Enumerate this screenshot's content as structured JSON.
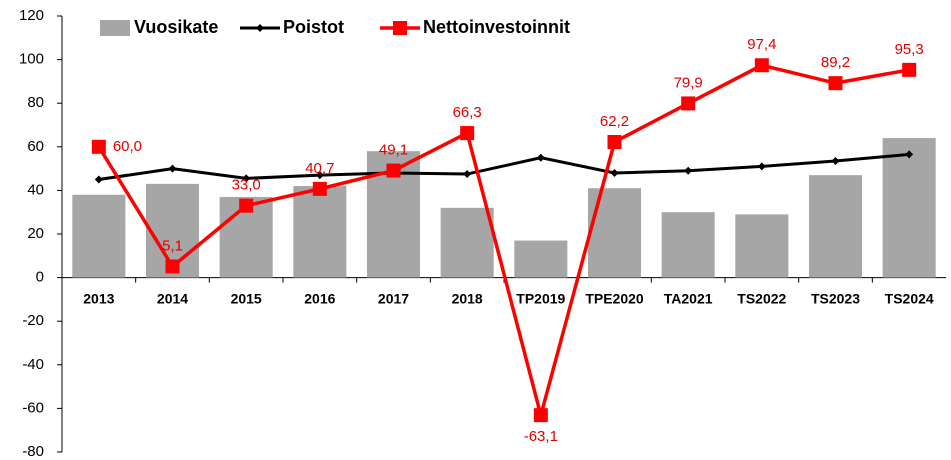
{
  "chart_data": {
    "type": "bar-line",
    "categories": [
      "2013",
      "2014",
      "2015",
      "2016",
      "2017",
      "2018",
      "TP2019",
      "TPE2020",
      "TA2021",
      "TS2022",
      "TS2023",
      "TS2024"
    ],
    "series": [
      {
        "name": "Vuosikate",
        "type": "bar",
        "color": "#a6a6a6",
        "values": [
          38,
          43,
          37,
          42,
          58,
          32,
          17,
          41,
          30,
          29,
          47,
          64
        ]
      },
      {
        "name": "Poistot",
        "type": "line",
        "color": "#000000",
        "values": [
          45,
          50,
          45.5,
          47,
          48,
          47.5,
          55,
          48,
          49,
          51,
          53.5,
          56.5
        ]
      },
      {
        "name": "Nettoinvestoinnit",
        "type": "line",
        "color": "#ff0000",
        "values": [
          60.0,
          5.1,
          33.0,
          40.7,
          49.1,
          66.3,
          -63.1,
          62.2,
          79.9,
          97.4,
          89.2,
          95.3
        ],
        "value_labels": [
          "60,0",
          "5,1",
          "33,0",
          "40,7",
          "49,1",
          "66,3",
          "-63,1",
          "62,2",
          "79,9",
          "97,4",
          "89,2",
          "95,3"
        ]
      }
    ],
    "ylim": [
      -80,
      120
    ],
    "yticks": [
      -80,
      -60,
      -40,
      -20,
      0,
      20,
      40,
      60,
      80,
      100,
      120
    ],
    "legend": "top-left"
  }
}
